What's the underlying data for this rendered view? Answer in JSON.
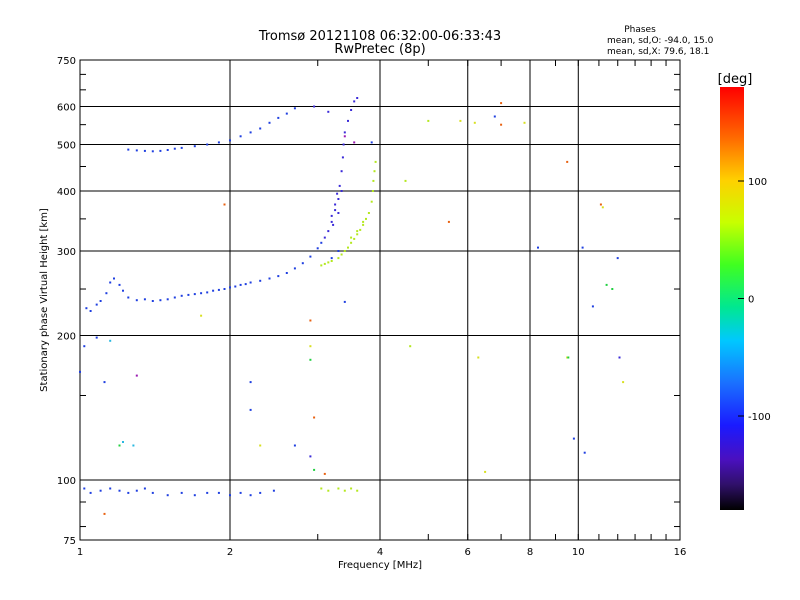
{
  "chart_data": {
    "type": "scatter",
    "title": "Tromsø 20121108 06:32:00-06:33:43",
    "subtitle": "RwPretec (8p)",
    "xlabel": "Frequency [MHz]",
    "ylabel": "Stationary phase Virtual Height [km]",
    "x_scale": "log",
    "y_scale": "log",
    "xlim": [
      1,
      16
    ],
    "ylim": [
      75,
      750
    ],
    "x_ticks": [
      "1",
      "2",
      "4",
      "6",
      "8",
      "10",
      "16"
    ],
    "x_tick_values": [
      1,
      2,
      4,
      6,
      8,
      10,
      16
    ],
    "y_ticks": [
      "75",
      "100",
      "200",
      "300",
      "400",
      "500",
      "600",
      "750"
    ],
    "y_tick_values": [
      75,
      100,
      200,
      300,
      400,
      500,
      600,
      750
    ],
    "grid": true,
    "phases_info": {
      "heading": "Phases",
      "line1": "mean, sd,O: -94.0, 15.0",
      "line2": "mean, sd,X:  79.6, 18.1"
    },
    "colorbar": {
      "label": "[deg]",
      "ticks": [
        "100",
        "0",
        "-100"
      ],
      "tick_values": [
        100,
        0,
        -100
      ],
      "range": [
        -180,
        180
      ]
    },
    "series": [
      {
        "color": "#1f3fe0",
        "points": [
          [
            1.03,
            228
          ],
          [
            1.05,
            225
          ],
          [
            1.08,
            232
          ],
          [
            1.1,
            236
          ],
          [
            1.13,
            245
          ],
          [
            1.15,
            258
          ],
          [
            1.17,
            263
          ],
          [
            1.2,
            255
          ],
          [
            1.22,
            248
          ],
          [
            1.25,
            240
          ],
          [
            1.3,
            237
          ],
          [
            1.35,
            238
          ],
          [
            1.4,
            236
          ],
          [
            1.45,
            237
          ],
          [
            1.5,
            238
          ],
          [
            1.55,
            240
          ],
          [
            1.6,
            242
          ],
          [
            1.65,
            243
          ],
          [
            1.7,
            244
          ],
          [
            1.75,
            245
          ],
          [
            1.8,
            246
          ],
          [
            1.85,
            248
          ],
          [
            1.9,
            249
          ],
          [
            1.95,
            250
          ],
          [
            2.0,
            252
          ],
          [
            2.05,
            253
          ],
          [
            2.1,
            255
          ],
          [
            2.15,
            256
          ],
          [
            2.2,
            258
          ],
          [
            2.3,
            260
          ],
          [
            2.4,
            263
          ],
          [
            2.5,
            266
          ],
          [
            2.6,
            270
          ],
          [
            2.7,
            276
          ],
          [
            2.8,
            283
          ],
          [
            2.9,
            292
          ],
          [
            3.0,
            304
          ],
          [
            3.05,
            312
          ],
          [
            1.02,
            96
          ],
          [
            1.05,
            94
          ],
          [
            1.1,
            95
          ],
          [
            1.15,
            96
          ],
          [
            1.2,
            95
          ],
          [
            1.25,
            94
          ],
          [
            1.3,
            95
          ],
          [
            1.35,
            96
          ],
          [
            1.4,
            94
          ],
          [
            1.5,
            93
          ],
          [
            1.6,
            94
          ],
          [
            1.7,
            93
          ],
          [
            1.8,
            94
          ],
          [
            1.9,
            94
          ],
          [
            2.0,
            93
          ],
          [
            2.1,
            94
          ],
          [
            2.2,
            93
          ],
          [
            2.3,
            94
          ],
          [
            1.25,
            488
          ],
          [
            1.3,
            486
          ],
          [
            1.35,
            485
          ],
          [
            1.4,
            484
          ],
          [
            1.45,
            485
          ],
          [
            1.5,
            487
          ],
          [
            1.55,
            490
          ],
          [
            1.6,
            492
          ],
          [
            1.7,
            496
          ],
          [
            1.8,
            500
          ],
          [
            1.9,
            505
          ],
          [
            2.0,
            510
          ],
          [
            2.1,
            520
          ],
          [
            2.2,
            530
          ],
          [
            2.3,
            540
          ],
          [
            2.4,
            555
          ],
          [
            2.5,
            568
          ],
          [
            2.6,
            580
          ],
          [
            2.7,
            595
          ],
          [
            1.0,
            168
          ],
          [
            1.02,
            190
          ],
          [
            1.08,
            198
          ],
          [
            1.12,
            160
          ],
          [
            8.3,
            305
          ],
          [
            10.2,
            305
          ],
          [
            10.7,
            230
          ],
          [
            12.0,
            290
          ],
          [
            9.8,
            122
          ],
          [
            10.3,
            114
          ],
          [
            2.2,
            160
          ],
          [
            2.2,
            140
          ],
          [
            2.7,
            118
          ],
          [
            2.45,
            95
          ],
          [
            3.3,
            300
          ],
          [
            3.2,
            290
          ],
          [
            3.4,
            235
          ],
          [
            3.85,
            505
          ],
          [
            6.8,
            572
          ]
        ]
      },
      {
        "color": "#3a2ad8",
        "points": [
          [
            3.1,
            320
          ],
          [
            3.15,
            330
          ],
          [
            3.2,
            345
          ],
          [
            3.25,
            365
          ],
          [
            3.3,
            385
          ],
          [
            3.32,
            410
          ],
          [
            3.35,
            440
          ],
          [
            3.37,
            470
          ],
          [
            3.38,
            500
          ],
          [
            3.4,
            530
          ],
          [
            3.45,
            560
          ],
          [
            3.5,
            590
          ],
          [
            3.55,
            615
          ],
          [
            3.6,
            625
          ],
          [
            3.2,
            355
          ],
          [
            3.25,
            375
          ],
          [
            3.28,
            395
          ],
          [
            3.3,
            360
          ],
          [
            3.22,
            340
          ],
          [
            3.35,
            400
          ],
          [
            2.95,
            600
          ],
          [
            3.15,
            585
          ],
          [
            12.1,
            180
          ],
          [
            2.9,
            112
          ]
        ]
      },
      {
        "color": "#b4e81e",
        "points": [
          [
            3.05,
            280
          ],
          [
            3.1,
            282
          ],
          [
            3.15,
            284
          ],
          [
            3.2,
            286
          ],
          [
            3.3,
            290
          ],
          [
            3.35,
            295
          ],
          [
            3.4,
            300
          ],
          [
            3.45,
            305
          ],
          [
            3.5,
            312
          ],
          [
            3.55,
            318
          ],
          [
            3.6,
            325
          ],
          [
            3.65,
            332
          ],
          [
            3.7,
            340
          ],
          [
            3.75,
            350
          ],
          [
            3.8,
            360
          ],
          [
            3.85,
            380
          ],
          [
            3.87,
            400
          ],
          [
            3.88,
            420
          ],
          [
            3.9,
            440
          ],
          [
            3.92,
            460
          ],
          [
            3.05,
            96
          ],
          [
            3.15,
            95
          ],
          [
            3.3,
            96
          ],
          [
            3.4,
            95
          ],
          [
            3.5,
            96
          ],
          [
            3.6,
            95
          ],
          [
            4.6,
            190
          ],
          [
            4.5,
            420
          ],
          [
            5.0,
            560
          ],
          [
            3.6,
            330
          ],
          [
            3.7,
            345
          ],
          [
            3.5,
            320
          ]
        ]
      },
      {
        "color": "#d8e020",
        "points": [
          [
            5.8,
            560
          ],
          [
            6.2,
            555
          ],
          [
            6.3,
            180
          ],
          [
            7.8,
            555
          ],
          [
            11.2,
            370
          ],
          [
            12.3,
            160
          ],
          [
            6.5,
            104
          ],
          [
            9.5,
            180
          ],
          [
            1.75,
            220
          ],
          [
            2.9,
            190
          ],
          [
            2.3,
            118
          ]
        ]
      },
      {
        "color": "#20d040",
        "points": [
          [
            1.2,
            118
          ],
          [
            2.9,
            178
          ],
          [
            2.95,
            105
          ],
          [
            11.7,
            250
          ],
          [
            11.4,
            255
          ],
          [
            9.55,
            180
          ]
        ]
      },
      {
        "color": "#2ab8e0",
        "points": [
          [
            1.22,
            120
          ],
          [
            1.28,
            118
          ],
          [
            1.15,
            195
          ]
        ]
      },
      {
        "color": "#e86010",
        "points": [
          [
            7.0,
            610
          ],
          [
            7.0,
            550
          ],
          [
            9.5,
            460
          ],
          [
            5.5,
            345
          ],
          [
            1.95,
            375
          ],
          [
            2.9,
            215
          ],
          [
            3.1,
            103
          ],
          [
            1.12,
            85
          ],
          [
            2.95,
            135
          ],
          [
            11.1,
            375
          ]
        ]
      },
      {
        "color": "#9a1ab0",
        "points": [
          [
            1.3,
            165
          ],
          [
            3.4,
            520
          ],
          [
            3.55,
            505
          ]
        ]
      }
    ]
  }
}
